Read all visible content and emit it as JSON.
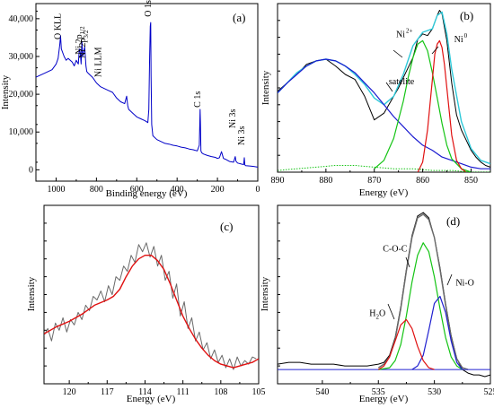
{
  "chart_data": [
    {
      "id": "a",
      "type": "line",
      "panel_label": "(a)",
      "xlabel": "Binding energy (eV)",
      "ylabel": "Intensity",
      "xlim": [
        1100,
        0
      ],
      "ylim": [
        -3000,
        44000
      ],
      "x_ticks": [
        1000,
        800,
        600,
        400,
        200,
        0
      ],
      "y_ticks": [
        0,
        10000,
        20000,
        30000,
        40000
      ],
      "y_tick_labels": [
        "0",
        "10,000",
        "20,000",
        "30,000",
        "40,000"
      ],
      "colors": {
        "survey": "#0000c8"
      },
      "annotations": [
        {
          "text": "O KLL",
          "x": 978,
          "y": 34500,
          "rotate": -90
        },
        {
          "text": "Ni 2p",
          "sub": "1/2",
          "x": 872,
          "y": 30500,
          "rotate": -90
        },
        {
          "text": "Ni 2p",
          "sub": "3/2",
          "x": 855,
          "y": 29500,
          "rotate": -90
        },
        {
          "text": "Ni LLM",
          "x": 778,
          "y": 24500,
          "rotate": -90
        },
        {
          "text": "O 1s",
          "x": 531,
          "y": 40500,
          "rotate": -90
        },
        {
          "text": "C 1s",
          "x": 285,
          "y": 16500,
          "rotate": -90
        },
        {
          "text": "Ni 3s",
          "x": 112,
          "y": 11000,
          "rotate": -90
        },
        {
          "text": "Ni 3s",
          "x": 66,
          "y": 6500,
          "rotate": -90
        }
      ],
      "series": [
        {
          "role": "survey",
          "x": [
            1100,
            1060,
            1020,
            1000,
            990,
            982,
            978,
            974,
            960,
            950,
            940,
            920,
            910,
            900,
            890,
            885,
            880,
            876,
            872,
            868,
            862,
            858,
            855,
            852,
            848,
            840,
            820,
            800,
            780,
            760,
            740,
            720,
            700,
            680,
            660,
            650,
            645,
            640,
            620,
            600,
            580,
            560,
            545,
            540,
            536,
            533,
            531,
            529,
            526,
            520,
            500,
            480,
            460,
            440,
            420,
            400,
            380,
            360,
            340,
            320,
            300,
            290,
            286,
            284,
            282,
            278,
            270,
            250,
            230,
            210,
            200,
            190,
            180,
            170,
            160,
            150,
            140,
            120,
            112,
            108,
            100,
            80,
            70,
            67,
            64,
            60,
            40,
            20,
            0
          ],
          "y": [
            24500,
            25500,
            26500,
            28000,
            29500,
            33000,
            35500,
            32000,
            30000,
            29000,
            29500,
            28500,
            27500,
            29000,
            28000,
            32000,
            31000,
            28000,
            34000,
            30000,
            31500,
            32500,
            30000,
            27500,
            26000,
            25500,
            24500,
            23000,
            22000,
            21500,
            21000,
            20500,
            19000,
            18000,
            17500,
            19500,
            17000,
            16000,
            15000,
            14000,
            13500,
            13000,
            12500,
            16000,
            30000,
            38000,
            39000,
            25000,
            12000,
            9000,
            8000,
            7500,
            7000,
            6800,
            6500,
            6300,
            6000,
            5800,
            5500,
            5300,
            5000,
            6500,
            16000,
            12000,
            5000,
            4500,
            4200,
            3800,
            3500,
            3300,
            3000,
            3200,
            4800,
            3000,
            2800,
            2500,
            2200,
            2000,
            3500,
            2300,
            1800,
            1500,
            1400,
            3200,
            1300,
            1100,
            1000,
            900,
            700
          ]
        }
      ]
    },
    {
      "id": "b",
      "type": "line",
      "panel_label": "(b)",
      "xlabel": "Energy (eV)",
      "ylabel": "Intensity",
      "xlim": [
        890,
        846
      ],
      "ylim": [
        0,
        1
      ],
      "x_ticks": [
        890,
        880,
        870,
        860,
        850
      ],
      "annotations": [
        {
          "text": "Ni",
          "sup": "2+",
          "x": 865.5,
          "y": 0.8
        },
        {
          "text": "Ni",
          "sup": "0",
          "x": 853.5,
          "y": 0.77
        },
        {
          "text": "satelite",
          "x": 867,
          "y": 0.52
        }
      ],
      "colors": {
        "raw": "#000000",
        "envelope": "#2ec9d9",
        "satellite": "#1a1ad0",
        "ni2": "#14c414",
        "ni0": "#e01010",
        "baseline": "#14c414"
      },
      "series": [
        {
          "role": "raw",
          "x": [
            890,
            888,
            886,
            884,
            882,
            880,
            878,
            876,
            874,
            872,
            870,
            868,
            866,
            865,
            864,
            862,
            861,
            860,
            859,
            858,
            857,
            856.5,
            856,
            855,
            854,
            853,
            852,
            851,
            850,
            849,
            848,
            847,
            846
          ],
          "y": [
            0.48,
            0.53,
            0.58,
            0.64,
            0.66,
            0.67,
            0.63,
            0.58,
            0.55,
            0.45,
            0.31,
            0.35,
            0.45,
            0.5,
            0.56,
            0.68,
            0.79,
            0.82,
            0.81,
            0.85,
            0.93,
            0.96,
            0.94,
            0.78,
            0.53,
            0.34,
            0.25,
            0.19,
            0.13,
            0.09,
            0.06,
            0.04,
            0.03
          ]
        },
        {
          "role": "envelope",
          "x": [
            890,
            888,
            886,
            884,
            882,
            880,
            878,
            876,
            874,
            872,
            870,
            868,
            866,
            864,
            862,
            860,
            858,
            857,
            856,
            855,
            854,
            852,
            850,
            848,
            846
          ],
          "y": [
            0.47,
            0.53,
            0.59,
            0.63,
            0.66,
            0.67,
            0.66,
            0.63,
            0.58,
            0.52,
            0.44,
            0.4,
            0.45,
            0.58,
            0.75,
            0.83,
            0.85,
            0.93,
            0.95,
            0.82,
            0.61,
            0.3,
            0.14,
            0.07,
            0.05
          ]
        },
        {
          "role": "satellite",
          "x": [
            890,
            888,
            886,
            884,
            882,
            880,
            878,
            876,
            874,
            872,
            870,
            868,
            866,
            864,
            862,
            860,
            858,
            856,
            854,
            852,
            850,
            848,
            846
          ],
          "y": [
            0.47,
            0.53,
            0.58,
            0.63,
            0.66,
            0.67,
            0.66,
            0.63,
            0.59,
            0.53,
            0.47,
            0.4,
            0.33,
            0.27,
            0.21,
            0.16,
            0.13,
            0.09,
            0.07,
            0.05,
            0.03,
            0.02,
            0.02
          ]
        },
        {
          "role": "ni2",
          "x": [
            870,
            868,
            866,
            864,
            863,
            862,
            861,
            860,
            859,
            858,
            857,
            856,
            855,
            854,
            852,
            850
          ],
          "y": [
            0.02,
            0.07,
            0.2,
            0.42,
            0.56,
            0.68,
            0.76,
            0.78,
            0.72,
            0.59,
            0.44,
            0.29,
            0.16,
            0.08,
            0.02,
            0.0
          ]
        },
        {
          "role": "ni0",
          "x": [
            861,
            860,
            859,
            858,
            857.5,
            857,
            856.5,
            856,
            855.5,
            855,
            854.5,
            854,
            853,
            852,
            851
          ],
          "y": [
            0.0,
            0.06,
            0.25,
            0.55,
            0.7,
            0.76,
            0.78,
            0.74,
            0.64,
            0.5,
            0.36,
            0.22,
            0.07,
            0.02,
            0.0
          ]
        },
        {
          "role": "baseline",
          "x": [
            890,
            886,
            882,
            878,
            874,
            870,
            866,
            862,
            858,
            854,
            850,
            846
          ],
          "y": [
            0.01,
            0.02,
            0.03,
            0.04,
            0.04,
            0.03,
            0.02,
            0.02,
            0.01,
            0.01,
            0.0,
            0.0
          ]
        }
      ]
    },
    {
      "id": "c",
      "type": "line",
      "panel_label": "(c)",
      "xlabel": "Energy (eV)",
      "ylabel": "Intensity",
      "xlim": [
        122,
        105
      ],
      "ylim": [
        0,
        1
      ],
      "x_ticks": [
        120,
        117,
        114,
        111,
        108,
        105
      ],
      "colors": {
        "raw": "#6a6a6a",
        "fit": "#e01010"
      },
      "series": [
        {
          "role": "raw",
          "x": [
            122,
            121.7,
            121.4,
            121.1,
            120.8,
            120.5,
            120.2,
            119.9,
            119.6,
            119.3,
            119.0,
            118.7,
            118.4,
            118.1,
            117.8,
            117.5,
            117.2,
            116.9,
            116.6,
            116.3,
            116.0,
            115.7,
            115.4,
            115.1,
            114.8,
            114.5,
            114.2,
            113.9,
            113.6,
            113.3,
            113.0,
            112.7,
            112.4,
            112.1,
            111.8,
            111.5,
            111.2,
            110.9,
            110.6,
            110.3,
            110.0,
            109.7,
            109.4,
            109.1,
            108.8,
            108.5,
            108.2,
            107.9,
            107.6,
            107.3,
            107.0,
            106.7,
            106.4,
            106.1,
            105.8,
            105.5,
            105.2
          ],
          "y": [
            0.27,
            0.31,
            0.24,
            0.34,
            0.3,
            0.37,
            0.29,
            0.36,
            0.33,
            0.4,
            0.36,
            0.44,
            0.41,
            0.49,
            0.47,
            0.52,
            0.46,
            0.55,
            0.5,
            0.6,
            0.58,
            0.66,
            0.63,
            0.72,
            0.68,
            0.78,
            0.74,
            0.79,
            0.71,
            0.77,
            0.66,
            0.72,
            0.58,
            0.63,
            0.48,
            0.56,
            0.38,
            0.46,
            0.31,
            0.37,
            0.24,
            0.29,
            0.19,
            0.23,
            0.14,
            0.19,
            0.12,
            0.16,
            0.09,
            0.14,
            0.08,
            0.15,
            0.1,
            0.13,
            0.11,
            0.15,
            0.14
          ]
        },
        {
          "role": "fit",
          "x": [
            122,
            121,
            120,
            119,
            118,
            117,
            116.5,
            116,
            115.5,
            115,
            114.5,
            114,
            113.5,
            113,
            112.5,
            112,
            111.5,
            111,
            110.5,
            110,
            109.5,
            109,
            108.5,
            108,
            107.5,
            107,
            106.5,
            106,
            105.5,
            105
          ],
          "y": [
            0.28,
            0.32,
            0.35,
            0.39,
            0.44,
            0.47,
            0.49,
            0.53,
            0.6,
            0.66,
            0.7,
            0.72,
            0.72,
            0.69,
            0.64,
            0.56,
            0.47,
            0.38,
            0.31,
            0.25,
            0.2,
            0.16,
            0.13,
            0.11,
            0.1,
            0.09,
            0.1,
            0.11,
            0.12,
            0.14
          ]
        }
      ]
    },
    {
      "id": "d",
      "type": "line",
      "panel_label": "(d)",
      "xlabel": "Energy (eV)",
      "ylabel": "Intensity",
      "xlim": [
        544,
        525
      ],
      "ylim": [
        0,
        1
      ],
      "x_ticks": [
        540,
        535,
        530,
        525
      ],
      "annotations": [
        {
          "text": "C-O-C",
          "x": 534.6,
          "y": 0.74
        },
        {
          "text": "Ni-O",
          "x": 528.1,
          "y": 0.55
        },
        {
          "text": "H",
          "sub": "2",
          "after": "O",
          "x": 535.8,
          "y": 0.38
        }
      ],
      "colors": {
        "raw": "#000000",
        "envelope": "#6a6a6a",
        "baseline": "#2020d0",
        "coc": "#14c414",
        "nio": "#2020d0",
        "h2o": "#e01010"
      },
      "series": [
        {
          "role": "raw",
          "x": [
            544,
            543,
            542,
            541,
            540,
            539,
            538,
            537,
            536,
            535,
            534.5,
            534,
            533.5,
            533,
            532.5,
            532,
            531.5,
            531,
            530.5,
            530,
            529.5,
            529,
            528.5,
            528,
            527.5,
            527,
            526.5,
            526,
            525.5,
            525
          ],
          "y": [
            0.11,
            0.12,
            0.12,
            0.11,
            0.11,
            0.11,
            0.1,
            0.1,
            0.1,
            0.11,
            0.12,
            0.16,
            0.26,
            0.43,
            0.64,
            0.83,
            0.94,
            0.96,
            0.93,
            0.82,
            0.65,
            0.45,
            0.27,
            0.14,
            0.08,
            0.06,
            0.05,
            0.05,
            0.04,
            0.05
          ]
        },
        {
          "role": "envelope",
          "x": [
            535,
            534.5,
            534,
            533.5,
            533,
            532.5,
            532,
            531.5,
            531,
            530.5,
            530,
            529.5,
            529,
            528.5,
            528,
            527.5,
            527
          ],
          "y": [
            0.09,
            0.11,
            0.15,
            0.25,
            0.42,
            0.63,
            0.82,
            0.93,
            0.95,
            0.92,
            0.82,
            0.64,
            0.44,
            0.26,
            0.14,
            0.09,
            0.08
          ]
        },
        {
          "role": "baseline",
          "x": [
            544,
            540,
            536,
            532,
            528,
            525
          ],
          "y": [
            0.08,
            0.08,
            0.08,
            0.08,
            0.08,
            0.08
          ]
        },
        {
          "role": "coc",
          "x": [
            535,
            534,
            533.5,
            533,
            532.5,
            532,
            531.5,
            531,
            530.5,
            530,
            529.5,
            529,
            528.5,
            528,
            527.5
          ],
          "y": [
            0.08,
            0.09,
            0.13,
            0.22,
            0.38,
            0.57,
            0.72,
            0.79,
            0.74,
            0.6,
            0.42,
            0.26,
            0.15,
            0.1,
            0.08
          ]
        },
        {
          "role": "nio",
          "x": [
            532,
            531.5,
            531,
            530.5,
            530,
            529.5,
            529,
            528.5,
            528,
            527.5
          ],
          "y": [
            0.08,
            0.1,
            0.16,
            0.3,
            0.45,
            0.49,
            0.4,
            0.24,
            0.12,
            0.08
          ]
        },
        {
          "role": "h2o",
          "x": [
            535,
            534.5,
            534,
            533.5,
            533,
            532.5,
            532,
            531.5,
            531,
            530.5,
            530
          ],
          "y": [
            0.08,
            0.1,
            0.15,
            0.24,
            0.33,
            0.36,
            0.31,
            0.21,
            0.13,
            0.09,
            0.08
          ]
        }
      ]
    }
  ]
}
